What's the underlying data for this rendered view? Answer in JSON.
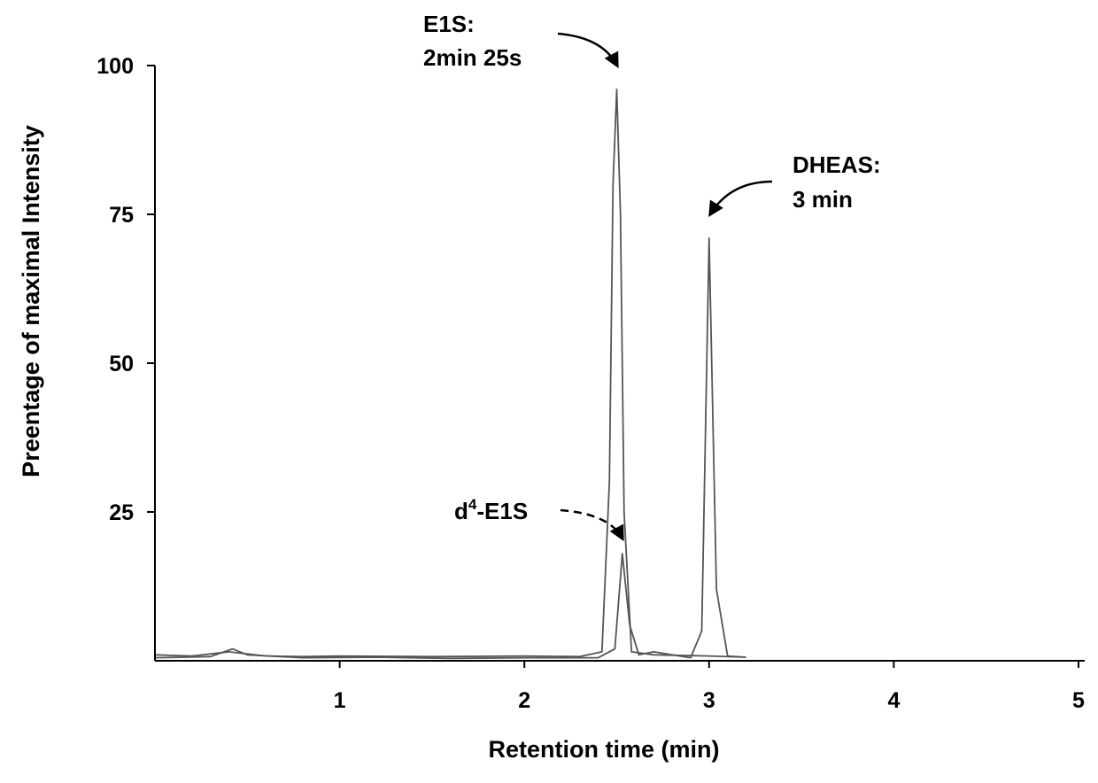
{
  "chart_data": {
    "type": "line",
    "title": "",
    "xlabel": "Retention time (min)",
    "ylabel": "Preentage of maximal Intensity",
    "xlim": [
      0,
      5
    ],
    "ylim": [
      0,
      100
    ],
    "x_ticks": [
      1,
      2,
      3,
      4,
      5
    ],
    "y_ticks": [
      25,
      50,
      75,
      100
    ],
    "grid": false,
    "legend": "none",
    "series": [
      {
        "x": [
          0.0,
          0.2,
          0.4,
          0.6,
          0.8,
          1.0,
          1.5,
          2.0,
          2.3,
          2.42,
          2.46,
          2.48,
          2.5,
          2.52,
          2.54,
          2.58,
          2.7,
          3.0,
          3.2
        ],
        "y": [
          1.0,
          0.8,
          1.5,
          0.8,
          0.7,
          0.8,
          0.7,
          0.8,
          0.7,
          1.5,
          30,
          80,
          96,
          75,
          25,
          1.5,
          1.0,
          0.8,
          0.6
        ]
      },
      {
        "x": [
          0.0,
          0.3,
          0.42,
          0.5,
          0.8,
          1.2,
          1.6,
          2.0,
          2.4,
          2.49,
          2.53,
          2.57,
          2.62,
          2.7,
          2.9,
          2.96,
          3.0,
          3.04,
          3.1,
          3.2
        ],
        "y": [
          0.5,
          0.7,
          2.0,
          1.0,
          0.5,
          0.6,
          0.4,
          0.5,
          0.5,
          2.0,
          18,
          6,
          1.0,
          1.5,
          0.5,
          5,
          71,
          12,
          0.8,
          0.6
        ]
      }
    ],
    "annotations": [
      {
        "lines": [
          "E1S:",
          "2min 25s"
        ],
        "points_to": {
          "x": 2.5,
          "y": 100
        }
      },
      {
        "lines": [
          "DHEAS:",
          "3 min"
        ],
        "points_to": {
          "x": 3.0,
          "y": 75
        }
      },
      {
        "prefix": "d",
        "sup": "4",
        "suffix": "-E1S",
        "points_to": {
          "x": 2.53,
          "y": 19
        },
        "dashed": true
      }
    ]
  }
}
